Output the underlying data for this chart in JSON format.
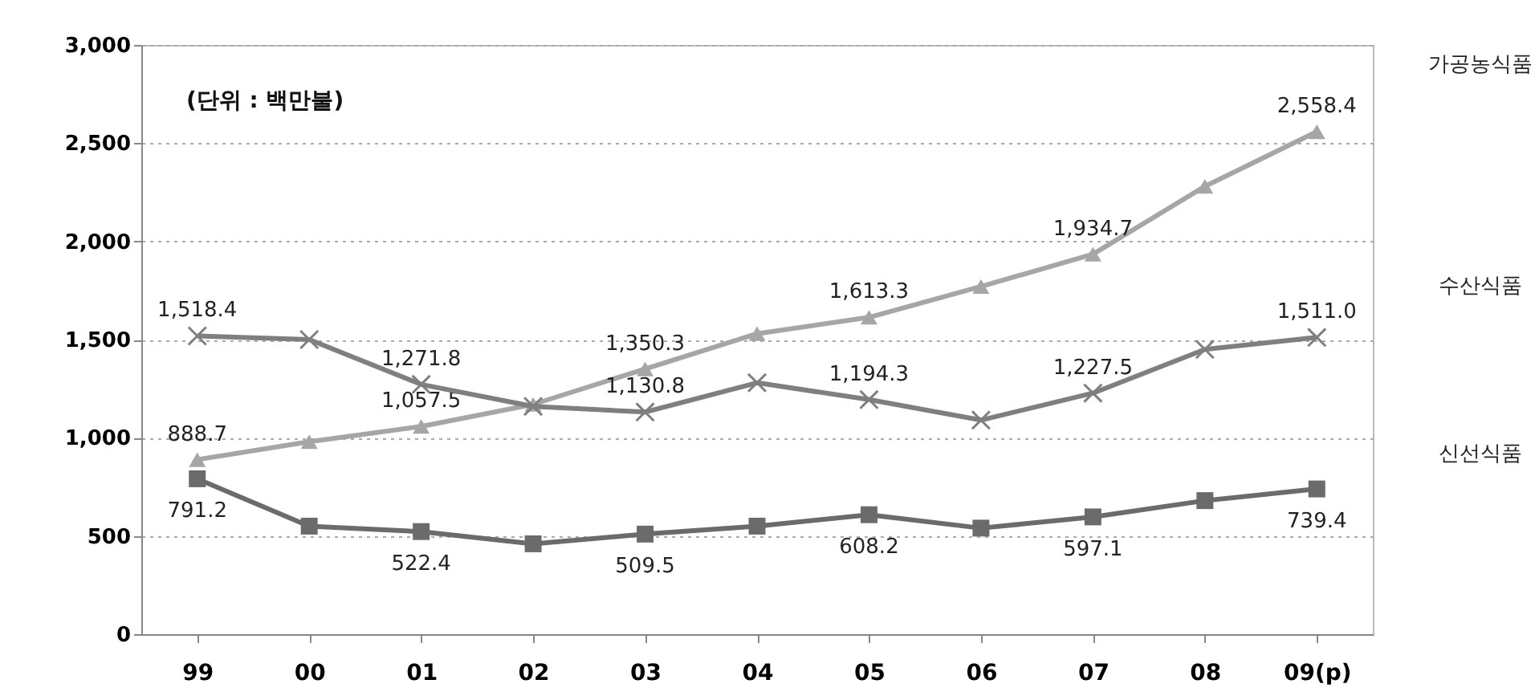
{
  "chart_data": {
    "type": "line",
    "annotations": [
      "(단위 : 백만불)"
    ],
    "categories": [
      "99",
      "00",
      "01",
      "02",
      "03",
      "04",
      "05",
      "06",
      "07",
      "08",
      "09(p)"
    ],
    "series": [
      {
        "name": "가공농식품",
        "color": "#a6a6a6",
        "marker": "triangle",
        "values": [
          888.7,
          980,
          1057.5,
          1170,
          1350.3,
          1530,
          1613.3,
          1770,
          1934.7,
          2280,
          2558.4
        ],
        "value_labels": [
          "888.7",
          null,
          "1,057.5",
          null,
          "1,350.3",
          null,
          "1,613.3",
          null,
          "1,934.7",
          null,
          "2,558.4"
        ]
      },
      {
        "name": "수산식품",
        "color": "#7f7f7f",
        "marker": "cross",
        "values": [
          1518.4,
          1500,
          1271.8,
          1160,
          1130.8,
          1280,
          1194.3,
          1090,
          1227.5,
          1450,
          1511.0
        ],
        "value_labels": [
          "1,518.4",
          null,
          "1,271.8",
          null,
          "1,130.8",
          null,
          "1,194.3",
          null,
          "1,227.5",
          null,
          "1,511.0"
        ]
      },
      {
        "name": "신선식품",
        "color": "#6b6b6b",
        "marker": "square",
        "values": [
          791.2,
          550,
          522.4,
          460,
          509.5,
          550,
          608.2,
          540,
          597.1,
          680,
          739.4
        ],
        "value_labels": [
          "791.2",
          null,
          "522.4",
          null,
          "509.5",
          null,
          "608.2",
          null,
          "597.1",
          null,
          "739.4"
        ]
      }
    ],
    "ylim": [
      0,
      3000
    ],
    "yticks": [
      0,
      500,
      {
        "value": 1000,
        "label": "1,000"
      },
      {
        "value": 1500,
        "label": "1,500"
      },
      {
        "value": 2000,
        "label": "2,000"
      },
      {
        "value": 2500,
        "label": "2,500"
      },
      {
        "value": 3000,
        "label": "3,000"
      }
    ],
    "grid": "y",
    "legend": false,
    "line_style": "solid"
  }
}
